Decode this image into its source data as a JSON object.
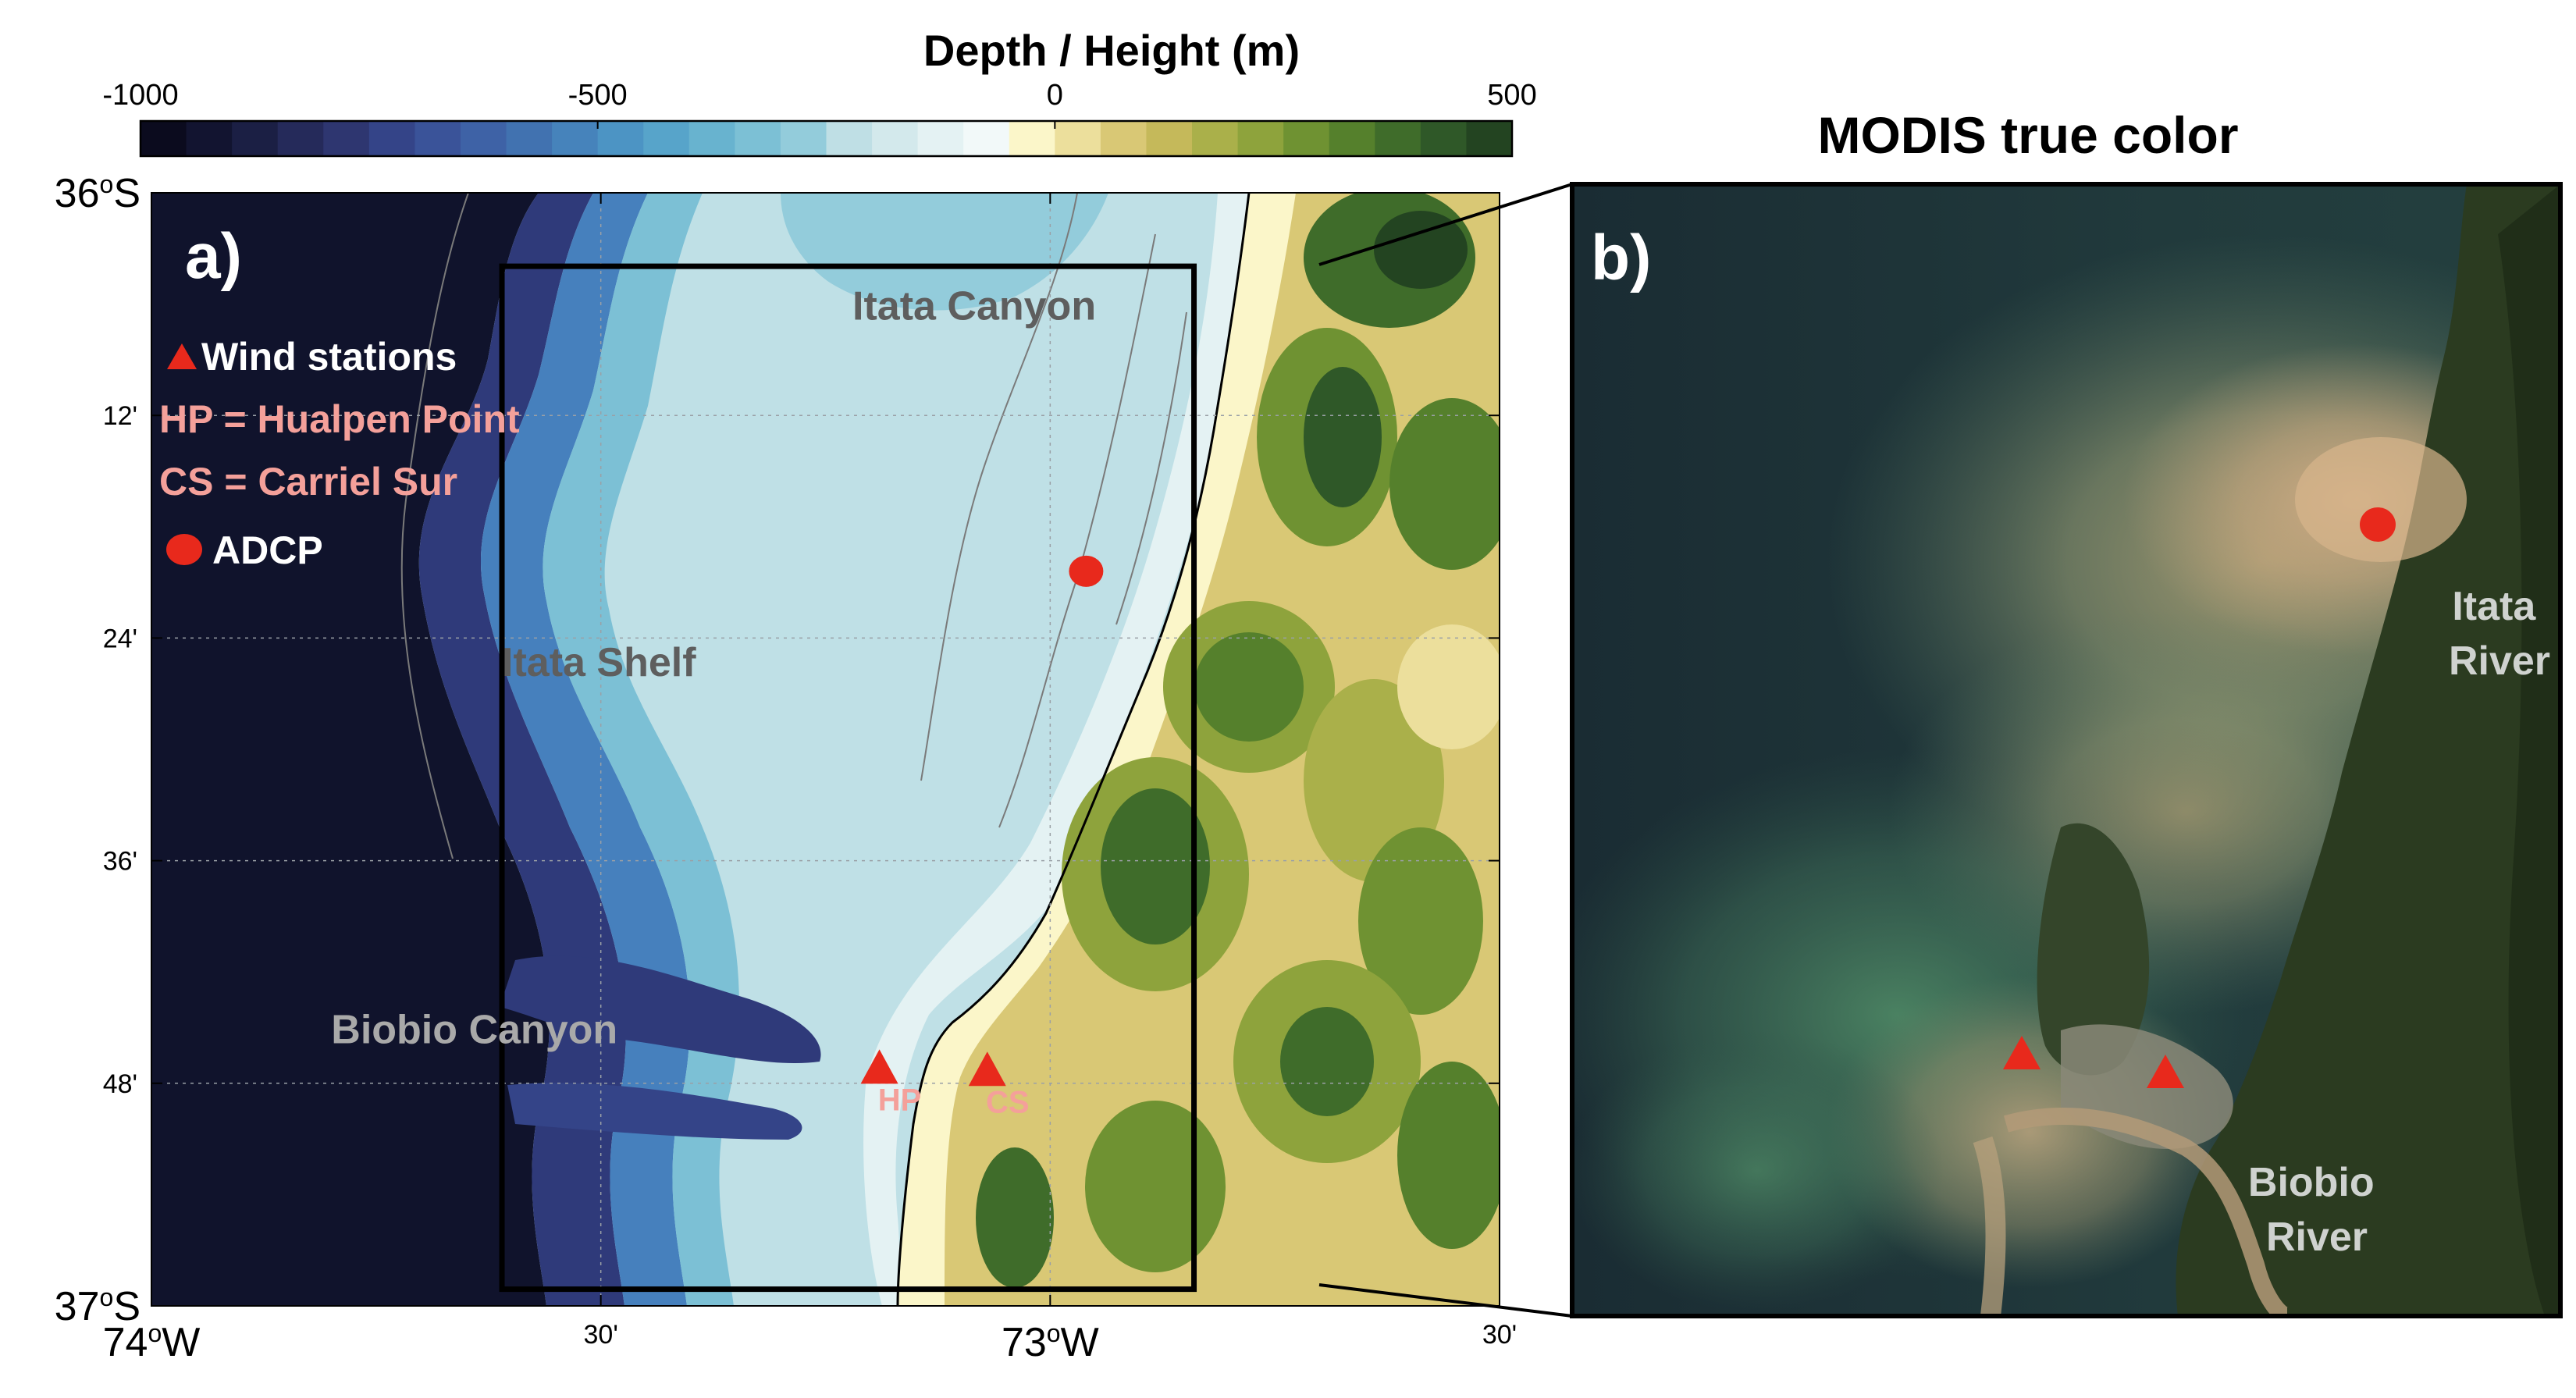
{
  "colorbar": {
    "title": "Depth / Height (m)",
    "ticks": [
      {
        "value": -1000,
        "label": "-1000"
      },
      {
        "value": -500,
        "label": "-500"
      },
      {
        "value": 0,
        "label": "0"
      },
      {
        "value": 500,
        "label": "500"
      }
    ],
    "range": [
      -1000,
      500
    ],
    "step_m": 50,
    "colors": [
      "#0b0b1e",
      "#121430",
      "#1b1f44",
      "#252a5a",
      "#2e3670",
      "#344488",
      "#3a5399",
      "#3e62a6",
      "#4172b0",
      "#4683bb",
      "#4c94c4",
      "#57a4ca",
      "#68b3cf",
      "#7cc0d5",
      "#93ccdb",
      "#aad6e0",
      "#bfdfe5",
      "#d3e9ec",
      "#e4f2f3",
      "#f2f9f9",
      "#fbf6c9",
      "#ecdf9c",
      "#d9c875",
      "#c5b95a",
      "#aab04a",
      "#8ea33c",
      "#6f9232",
      "#55802c",
      "#3f6c2a",
      "#2f5828",
      "#234421",
      "#1c2f16"
    ]
  },
  "panel_a": {
    "label": "a)",
    "lat_ticks": [
      {
        "value": -36.0,
        "label": "36",
        "sup": "o",
        "suffix": "S",
        "big": true
      },
      {
        "value": -36.2,
        "label": "12'"
      },
      {
        "value": -36.4,
        "label": "24'"
      },
      {
        "value": -36.6,
        "label": "36'"
      },
      {
        "value": -36.8,
        "label": "48'"
      },
      {
        "value": -37.0,
        "label": "37",
        "sup": "o",
        "suffix": "S",
        "big": true
      }
    ],
    "lon_ticks": [
      {
        "value": -74.0,
        "label": "74",
        "sup": "o",
        "suffix": "W",
        "big": true
      },
      {
        "value": -73.5,
        "label": "30'"
      },
      {
        "value": -73.0,
        "label": "73",
        "sup": "o",
        "suffix": "W",
        "big": true
      },
      {
        "value": -72.5,
        "label": "30'"
      }
    ],
    "extent": {
      "lon": [
        -74.0,
        -72.5
      ],
      "lat": [
        -37.0,
        -36.0
      ]
    },
    "box": {
      "lon": [
        -73.61,
        -72.84
      ],
      "lat": [
        -36.985,
        -36.066
      ]
    },
    "features": [
      {
        "name": "Itata Canyon",
        "lon": -73.22,
        "lat": -36.1
      },
      {
        "name": "Itata Shelf",
        "lon": -73.61,
        "lat": -36.42
      },
      {
        "name": "Biobio Canyon",
        "lon": -73.8,
        "lat": -36.75
      }
    ],
    "legend": {
      "wind": "Wind stations",
      "hp": "HP = Hualpen Point",
      "cs": "CS = Carriel Sur",
      "adcp": "ADCP"
    },
    "stations": [
      {
        "label": "HP",
        "lon": -73.19,
        "lat": -36.785
      },
      {
        "label": "CS",
        "lon": -73.07,
        "lat": -36.787
      }
    ],
    "adcp": {
      "lon": -72.96,
      "lat": -36.34
    }
  },
  "panel_b": {
    "title": "MODIS true color",
    "label": "b)",
    "labels": [
      {
        "lines": [
          "Itata",
          "River"
        ]
      },
      {
        "lines": [
          "Biobio",
          "River"
        ]
      }
    ]
  },
  "colors": {
    "marker": "#e8291c",
    "station_text": "#f4a09a",
    "feature_text": "#5e5e5e",
    "legend_white": "#ffffff"
  }
}
